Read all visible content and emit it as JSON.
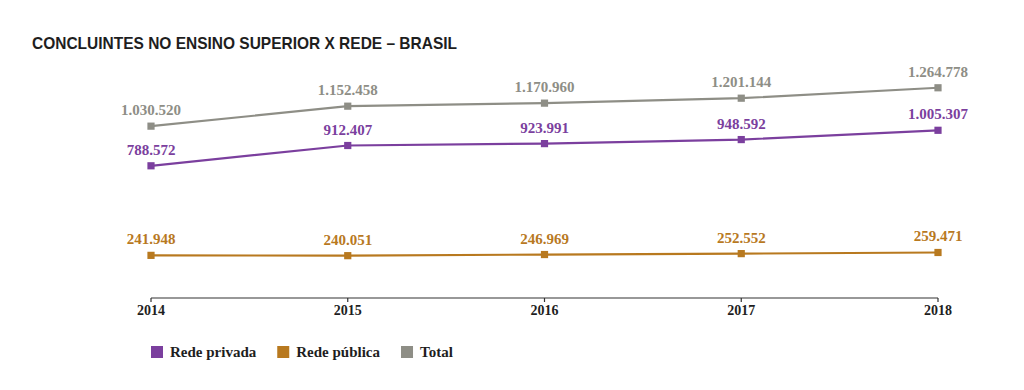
{
  "chart_data": {
    "type": "line",
    "title": "CONCLUINTES NO ENSINO SUPERIOR X REDE – BRASIL",
    "categories": [
      "2014",
      "2015",
      "2016",
      "2017",
      "2018"
    ],
    "series": [
      {
        "name": "Rede privada",
        "color": "#7b3f9e",
        "marker": "square",
        "line_style": "solid",
        "values": [
          788572,
          912407,
          923991,
          948592,
          1005307
        ],
        "value_labels": [
          "788.572",
          "912.407",
          "923.991",
          "948.592",
          "1.005.307"
        ]
      },
      {
        "name": "Rede pública",
        "color": "#b8791f",
        "marker": "square",
        "line_style": "solid",
        "values": [
          241948,
          240051,
          246969,
          252552,
          259471
        ],
        "value_labels": [
          "241.948",
          "240.051",
          "246.969",
          "252.552",
          "259.471"
        ]
      },
      {
        "name": "Total",
        "color": "#8e8e86",
        "marker": "square",
        "line_style": "solid",
        "values": [
          1030520,
          1152458,
          1170960,
          1201144,
          1264778
        ],
        "value_labels": [
          "1.030.520",
          "1.152.458",
          "1.170.960",
          "1.201.144",
          "1.264.778"
        ]
      }
    ],
    "ylim": [
      0,
      1300000
    ],
    "data_labels": true,
    "tick_labels": "x",
    "grid": false,
    "legend": "bottom-left"
  }
}
